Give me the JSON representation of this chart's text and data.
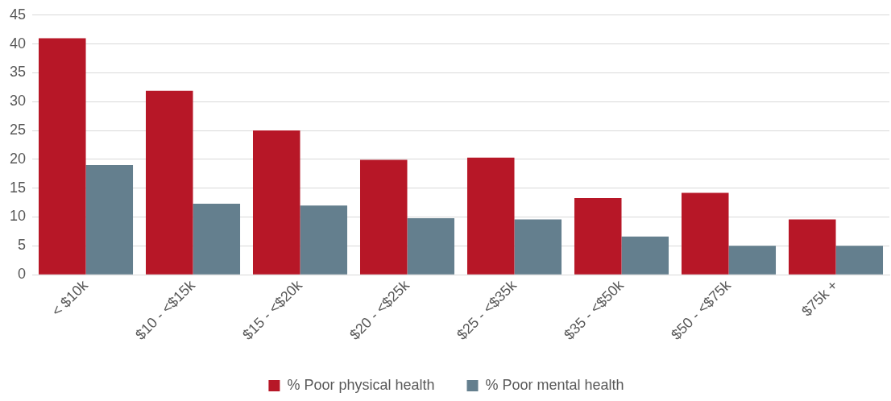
{
  "chart_data": {
    "type": "bar",
    "categories": [
      "< $10k",
      "$10 - <$15k",
      "$15 - <$20k",
      "$20 - <$25k",
      "$25 - <$35k",
      "$35 - <$50k",
      "$50 - <$75k",
      "$75k +"
    ],
    "series": [
      {
        "name": "% Poor physical health",
        "color": "#b71727",
        "values": [
          41,
          31.9,
          25,
          19.9,
          20.3,
          13.3,
          14.2,
          9.6
        ]
      },
      {
        "name": "% Poor mental health",
        "color": "#647f8e",
        "values": [
          19,
          12.3,
          12,
          9.8,
          9.6,
          6.6,
          5,
          5
        ]
      }
    ],
    "ylim": [
      0,
      45
    ],
    "yticks": [
      0,
      5,
      10,
      15,
      20,
      25,
      30,
      35,
      40,
      45
    ],
    "grid": "y",
    "legend": "bottom"
  }
}
